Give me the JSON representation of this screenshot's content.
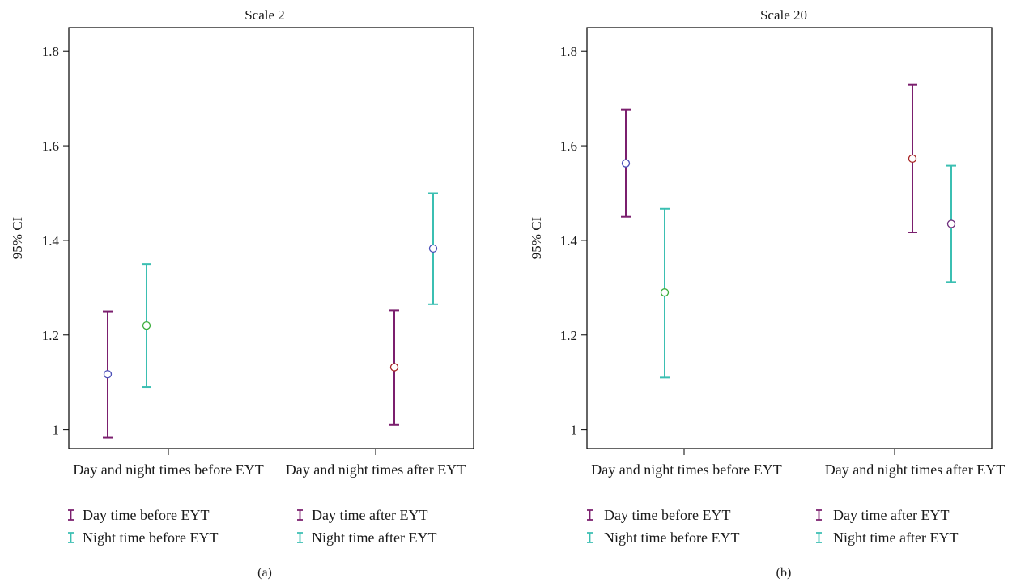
{
  "colors": {
    "day": "#7b1f6e",
    "night": "#3bbfb2",
    "marker_blue": "#4b4fb8",
    "marker_green": "#3cae3c",
    "marker_red": "#a82424",
    "marker_purple": "#6b2a7a"
  },
  "chart_data": [
    {
      "type": "errorbar",
      "title": "Scale 2",
      "panel_label": "(a)",
      "ylabel": "95% CI",
      "xlabel": "",
      "ylim": [
        0.96,
        1.85
      ],
      "yticks": [
        1,
        1.2,
        1.4,
        1.6,
        1.8
      ],
      "ytick_labels": [
        "1",
        "1.2",
        "1.4",
        "1.6",
        "1.8"
      ],
      "categories": [
        "Day and night times before EYT",
        "Day and night times after EYT"
      ],
      "legend": {
        "position": "bottom",
        "entries": [
          "Day time before EYT",
          "Day time after EYT",
          "Night time before EYT",
          "Night time after EYT"
        ]
      },
      "series": [
        {
          "name": "Day time before EYT",
          "category": 0,
          "color": "day",
          "marker_color": "marker_blue",
          "mean": 1.117,
          "lower": 0.983,
          "upper": 1.25
        },
        {
          "name": "Night time before EYT",
          "category": 0,
          "color": "night",
          "marker_color": "marker_green",
          "mean": 1.22,
          "lower": 1.09,
          "upper": 1.35
        },
        {
          "name": "Day time after EYT",
          "category": 1,
          "color": "day",
          "marker_color": "marker_red",
          "mean": 1.132,
          "lower": 1.01,
          "upper": 1.252
        },
        {
          "name": "Night time after EYT",
          "category": 1,
          "color": "night",
          "marker_color": "marker_blue",
          "mean": 1.383,
          "lower": 1.265,
          "upper": 1.5
        }
      ]
    },
    {
      "type": "errorbar",
      "title": "Scale 20",
      "panel_label": "(b)",
      "ylabel": "95% CI",
      "xlabel": "",
      "ylim": [
        0.96,
        1.85
      ],
      "yticks": [
        1,
        1.2,
        1.4,
        1.6,
        1.8
      ],
      "ytick_labels": [
        "1",
        "1.2",
        "1.4",
        "1.6",
        "1.8"
      ],
      "categories": [
        "Day and night times before EYT",
        "Day and night times after EYT"
      ],
      "legend": {
        "position": "bottom",
        "entries": [
          "Day time before EYT",
          "Day time after EYT",
          "Night time before EYT",
          "Night time after EYT"
        ]
      },
      "series": [
        {
          "name": "Day time before EYT",
          "category": 0,
          "color": "day",
          "marker_color": "marker_blue",
          "mean": 1.563,
          "lower": 1.45,
          "upper": 1.676
        },
        {
          "name": "Night time before EYT",
          "category": 0,
          "color": "night",
          "marker_color": "marker_green",
          "mean": 1.29,
          "lower": 1.11,
          "upper": 1.467
        },
        {
          "name": "Day time after EYT",
          "category": 1,
          "color": "day",
          "marker_color": "marker_red",
          "mean": 1.573,
          "lower": 1.417,
          "upper": 1.729
        },
        {
          "name": "Night time after EYT",
          "category": 1,
          "color": "night",
          "marker_color": "marker_purple",
          "mean": 1.435,
          "lower": 1.312,
          "upper": 1.558
        }
      ]
    }
  ]
}
